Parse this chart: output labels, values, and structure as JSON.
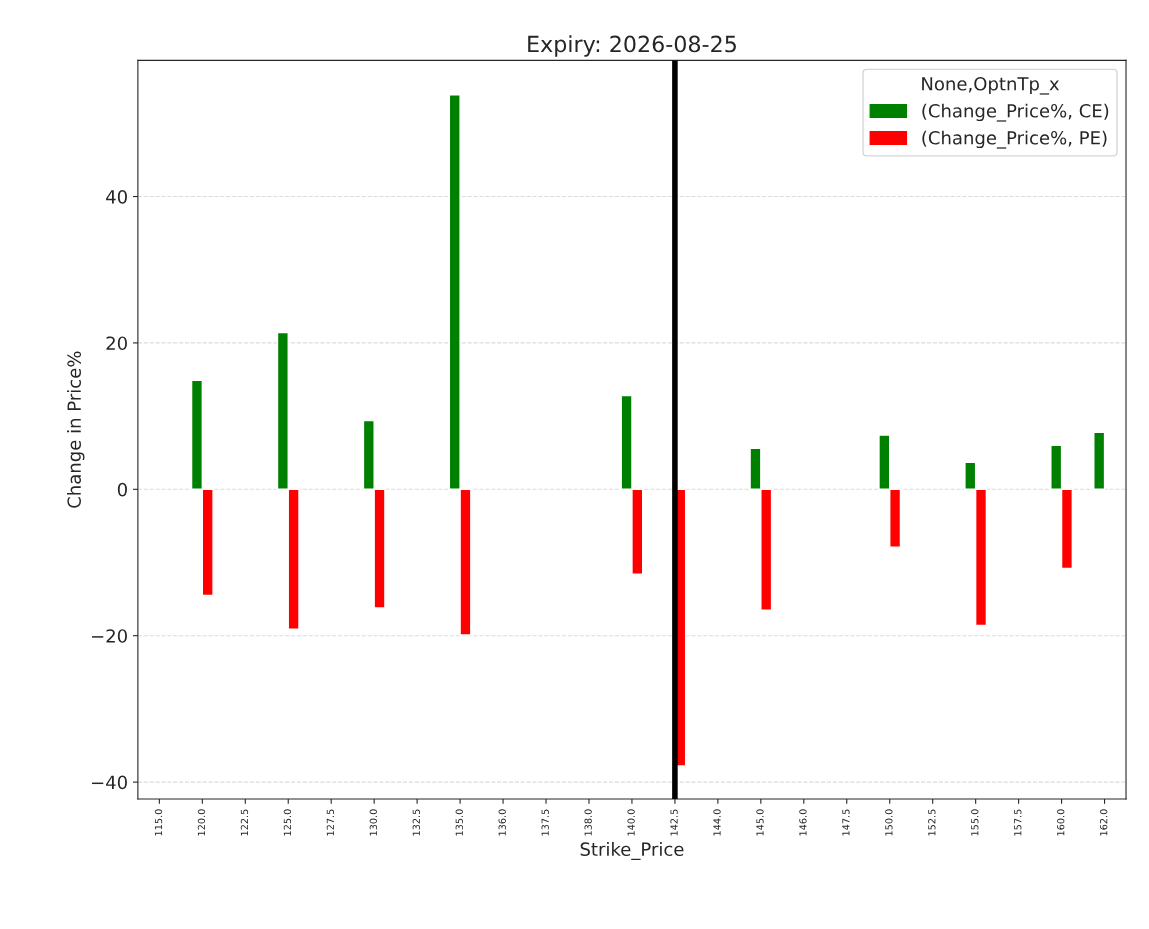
{
  "chart_data": {
    "type": "bar",
    "title": "Expiry: 2026-08-25",
    "xlabel": "Strike_Price",
    "ylabel": "Change in Price%",
    "legend_title": "None,OptnTp_x",
    "categories": [
      "115.0",
      "120.0",
      "122.5",
      "125.0",
      "127.5",
      "130.0",
      "132.5",
      "135.0",
      "136.0",
      "137.5",
      "138.0",
      "140.0",
      "142.5",
      "144.0",
      "145.0",
      "146.0",
      "147.5",
      "150.0",
      "152.5",
      "155.0",
      "157.5",
      "160.0",
      "162.0"
    ],
    "series": [
      {
        "name": "(Change_Price%, CE)",
        "color": "#008000",
        "values": [
          null,
          14.9,
          null,
          21.4,
          null,
          9.4,
          null,
          53.9,
          null,
          null,
          null,
          12.8,
          null,
          null,
          5.6,
          null,
          null,
          7.4,
          null,
          3.7,
          null,
          6.0,
          7.8
        ]
      },
      {
        "name": "(Change_Price%, PE)",
        "color": "#ff0000",
        "values": [
          null,
          -14.5,
          null,
          -19.1,
          null,
          -16.2,
          null,
          -19.9,
          null,
          null,
          null,
          -11.6,
          -37.8,
          null,
          -16.5,
          null,
          null,
          -7.9,
          null,
          -18.6,
          null,
          -10.8,
          null
        ]
      }
    ],
    "ylim": [
      -42.3,
      58.6
    ],
    "yticks": [
      {
        "value": -40,
        "label": "−40"
      },
      {
        "value": -20,
        "label": "−20"
      },
      0,
      20,
      40
    ],
    "ref_lines": [
      {
        "axis": "x",
        "value": "142.5",
        "color": "#000000"
      }
    ],
    "grid": "y",
    "legend": "top right"
  }
}
